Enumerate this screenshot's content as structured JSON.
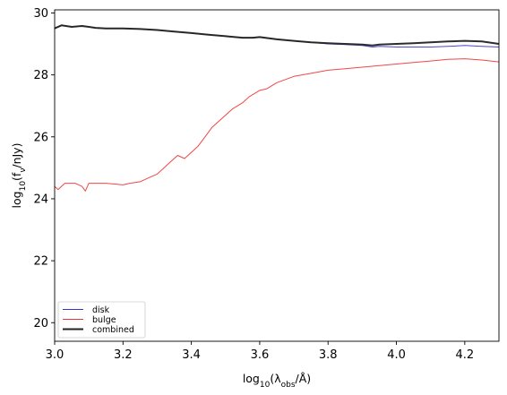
{
  "chart_data": {
    "type": "line",
    "title": "",
    "xlabel": {
      "base": "log",
      "sub1": "10",
      "mid": "(λ",
      "sub2": "obs",
      "end": "/Å)"
    },
    "ylabel": {
      "base": "log",
      "sub1": "10",
      "mid": "(f",
      "sub2": "ν",
      "end": "/nJy)"
    },
    "xlim": [
      3.0,
      4.3
    ],
    "ylim": [
      19.4,
      30.1
    ],
    "xticks": [
      3.0,
      3.2,
      3.4,
      3.6,
      3.8,
      4.0,
      4.2
    ],
    "xtick_labels": [
      "3.0",
      "3.2",
      "3.4",
      "3.6",
      "3.8",
      "4.0",
      "4.2"
    ],
    "yticks": [
      20,
      22,
      24,
      26,
      28,
      30
    ],
    "ytick_labels": [
      "20",
      "22",
      "24",
      "26",
      "28",
      "30"
    ],
    "grid": false,
    "legend_position": "lower-left",
    "series": [
      {
        "name": "disk",
        "color": "#3333cc",
        "x": [
          3.0,
          3.02,
          3.05,
          3.08,
          3.1,
          3.12,
          3.15,
          3.18,
          3.2,
          3.25,
          3.3,
          3.35,
          3.4,
          3.45,
          3.5,
          3.55,
          3.58,
          3.6,
          3.65,
          3.7,
          3.75,
          3.8,
          3.85,
          3.9,
          3.93,
          3.95,
          4.0,
          4.05,
          4.1,
          4.15,
          4.2,
          4.25,
          4.3
        ],
        "y": [
          29.5,
          29.6,
          29.55,
          29.58,
          29.55,
          29.52,
          29.5,
          29.5,
          29.5,
          29.48,
          29.45,
          29.4,
          29.35,
          29.3,
          29.25,
          29.2,
          29.2,
          29.22,
          29.15,
          29.1,
          29.05,
          29.0,
          28.98,
          28.95,
          28.9,
          28.92,
          28.9,
          28.9,
          28.9,
          28.92,
          28.95,
          28.92,
          28.9
        ]
      },
      {
        "name": "bulge",
        "color": "#ee3333",
        "x": [
          3.0,
          3.01,
          3.03,
          3.06,
          3.08,
          3.09,
          3.1,
          3.15,
          3.2,
          3.22,
          3.25,
          3.28,
          3.3,
          3.32,
          3.34,
          3.36,
          3.38,
          3.4,
          3.42,
          3.44,
          3.46,
          3.48,
          3.5,
          3.52,
          3.55,
          3.57,
          3.6,
          3.62,
          3.65,
          3.7,
          3.75,
          3.8,
          3.85,
          3.9,
          3.95,
          4.0,
          4.05,
          4.1,
          4.15,
          4.2,
          4.25,
          4.3
        ],
        "y": [
          24.4,
          24.3,
          24.5,
          24.5,
          24.4,
          24.25,
          24.5,
          24.5,
          24.45,
          24.5,
          24.55,
          24.7,
          24.8,
          25.0,
          25.2,
          25.4,
          25.3,
          25.5,
          25.7,
          26.0,
          26.3,
          26.5,
          26.7,
          26.9,
          27.1,
          27.3,
          27.5,
          27.55,
          27.75,
          27.95,
          28.05,
          28.15,
          28.2,
          28.25,
          28.3,
          28.35,
          28.4,
          28.45,
          28.5,
          28.52,
          28.48,
          28.42
        ]
      },
      {
        "name": "combined",
        "color": "#222222",
        "x": [
          3.0,
          3.02,
          3.05,
          3.08,
          3.1,
          3.12,
          3.15,
          3.18,
          3.2,
          3.25,
          3.3,
          3.35,
          3.4,
          3.45,
          3.5,
          3.55,
          3.58,
          3.6,
          3.65,
          3.7,
          3.75,
          3.8,
          3.85,
          3.9,
          3.93,
          3.95,
          4.0,
          4.05,
          4.1,
          4.15,
          4.2,
          4.25,
          4.3
        ],
        "y": [
          29.5,
          29.6,
          29.55,
          29.58,
          29.55,
          29.52,
          29.5,
          29.5,
          29.5,
          29.48,
          29.45,
          29.4,
          29.35,
          29.3,
          29.25,
          29.2,
          29.2,
          29.22,
          29.15,
          29.1,
          29.05,
          29.02,
          29.0,
          28.98,
          28.95,
          28.98,
          29.0,
          29.02,
          29.05,
          29.08,
          29.1,
          29.08,
          29.0
        ]
      }
    ]
  }
}
